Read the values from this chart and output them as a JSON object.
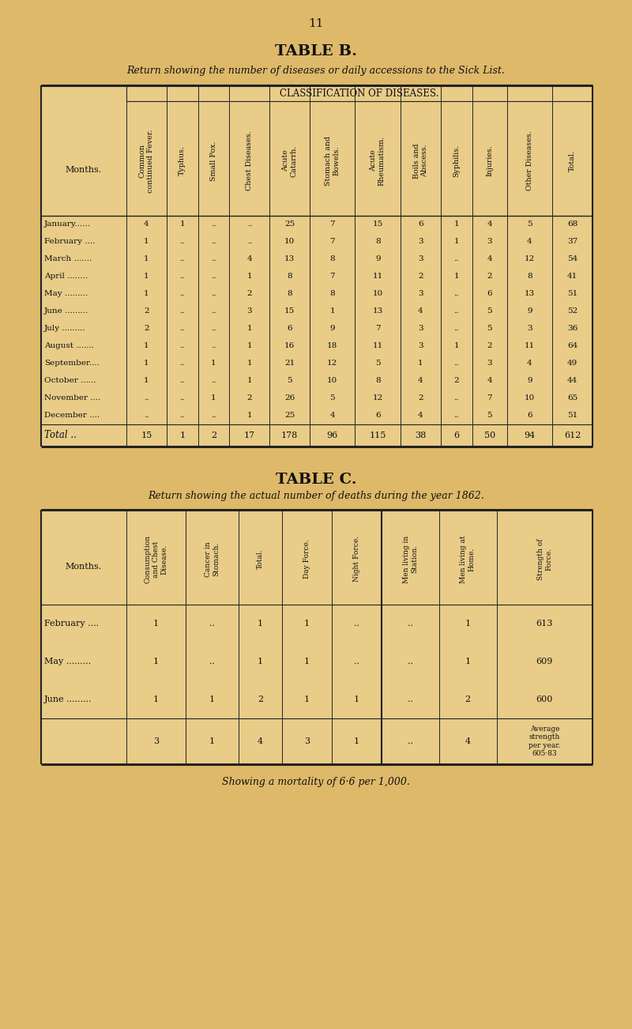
{
  "page_number": "11",
  "bg_color": "#DEB96A",
  "cell_bg": "#E8CC88",
  "table_b_title": "TABLE B.",
  "table_b_subtitle": "Return showing the number of diseases or daily accessions to the Sick List.",
  "classification_header": "CLASSIFICATION OF DISEASES.",
  "table_b_col_headers": [
    "Common\ncontinued Fever.",
    "Typhus.",
    "Small Pox.",
    "Chest Diseases.",
    "Acute\nCatarrh.",
    "Stomach and\nBowels.",
    "Acute\nRheumatism.",
    "Boils and\nAbscess.",
    "Syphilis.",
    "Injuries.",
    "Other Diseases.",
    "Total."
  ],
  "months_b": [
    "January......",
    "February ....",
    "March .......",
    "April ........",
    "May .........",
    "June .........",
    "July .........",
    "August .......",
    "September....",
    "October ......",
    "November ....",
    "December ...."
  ],
  "table_b_data": [
    [
      "4",
      "1",
      "..",
      "..",
      "25",
      "7",
      "15",
      "6",
      "1",
      "4",
      "5",
      "68"
    ],
    [
      "1",
      "..",
      "..",
      "..",
      "10",
      "7",
      "8",
      "3",
      "1",
      "3",
      "4",
      "37"
    ],
    [
      "1",
      "..",
      "..",
      "4",
      "13",
      "8",
      "9",
      "3",
      "..",
      "4",
      "12",
      "54"
    ],
    [
      "1",
      "..",
      "..",
      "1",
      "8",
      "7",
      "11",
      "2",
      "1",
      "2",
      "8",
      "41"
    ],
    [
      "1",
      "..",
      "..",
      "2",
      "8",
      "8",
      "10",
      "3",
      "..",
      "6",
      "13",
      "51"
    ],
    [
      "2",
      "..",
      "..",
      "3",
      "15",
      "1",
      "13",
      "4",
      "..",
      "5",
      "9",
      "52"
    ],
    [
      "2",
      "..",
      "..",
      "1",
      "6",
      "9",
      "7",
      "3",
      "..",
      "5",
      "3",
      "36"
    ],
    [
      "1",
      "..",
      "..",
      "1",
      "16",
      "18",
      "11",
      "3",
      "1",
      "2",
      "11",
      "64"
    ],
    [
      "1",
      "..",
      "1",
      "1",
      "21",
      "12",
      "5",
      "1",
      "..",
      "3",
      "4",
      "49"
    ],
    [
      "1",
      "..",
      "..",
      "1",
      "5",
      "10",
      "8",
      "4",
      "2",
      "4",
      "9",
      "44"
    ],
    [
      "..",
      "..",
      "1",
      "2",
      "26",
      "5",
      "12",
      "2",
      "..",
      "7",
      "10",
      "65"
    ],
    [
      "..",
      "..",
      "..",
      "1",
      "25",
      "4",
      "6",
      "4",
      "..",
      "5",
      "6",
      "51"
    ]
  ],
  "table_b_totals": [
    "15",
    "1",
    "2",
    "17",
    "178",
    "96",
    "115",
    "38",
    "6",
    "50",
    "94",
    "612"
  ],
  "table_c_title": "TABLE C.",
  "table_c_subtitle": "Return showing the actual number of deaths during the year 1862.",
  "table_c_col_headers": [
    "Consumption\nand Chest\nDisease.",
    "Cancer in\nStomach.",
    "Total.",
    "Day Force.",
    "Night Force.",
    "Men living in\nStation.",
    "Men living at\nHome.",
    "Strength of\nForce."
  ],
  "months_c": [
    "February ....",
    "May .........",
    "June ........."
  ],
  "table_c_data": [
    [
      "1",
      "..",
      "1",
      "1",
      "..",
      "..",
      "1",
      "613"
    ],
    [
      "1",
      "..",
      "1",
      "1",
      "..",
      "..",
      "1",
      "609"
    ],
    [
      "1",
      "1",
      "2",
      "1",
      "1",
      "..",
      "2",
      "600"
    ]
  ],
  "table_c_totals": [
    "3",
    "1",
    "4",
    "3",
    "1",
    "..",
    "4",
    "Average\nstrength\nper year.\n605·83"
  ],
  "mortality_note": "Showing a mortality of 6·6 per 1,000."
}
